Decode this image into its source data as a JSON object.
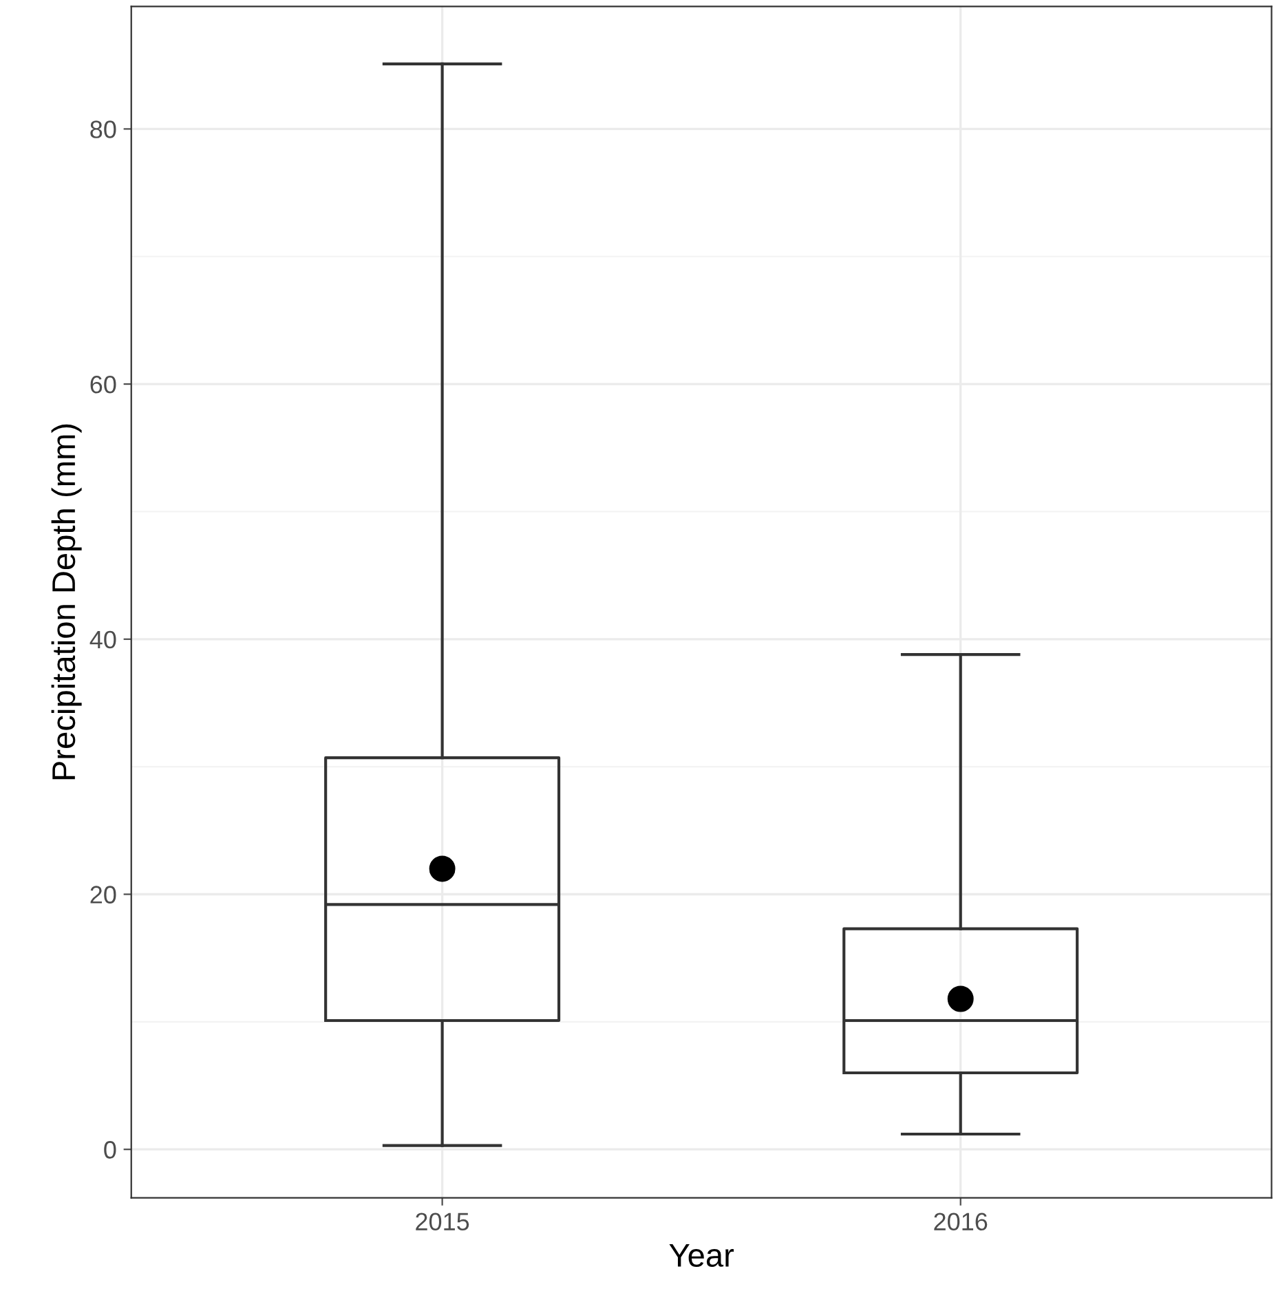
{
  "chart_data": {
    "type": "box",
    "xlabel": "Year",
    "ylabel": "Precipitation Depth (mm)",
    "categories": [
      "2015",
      "2016"
    ],
    "boxes": [
      {
        "low": 0.3,
        "q1": 10.1,
        "median": 19.2,
        "q3": 30.7,
        "high": 85.1,
        "mean": 22.0
      },
      {
        "low": 1.2,
        "q1": 6.0,
        "median": 10.1,
        "q3": 17.3,
        "high": 38.8,
        "mean": 11.8
      }
    ],
    "color": "#333333",
    "ylim": [
      -3.8,
      89.6
    ],
    "yticks": [
      0,
      20,
      40,
      60,
      80
    ],
    "grid": true,
    "legend": false
  }
}
